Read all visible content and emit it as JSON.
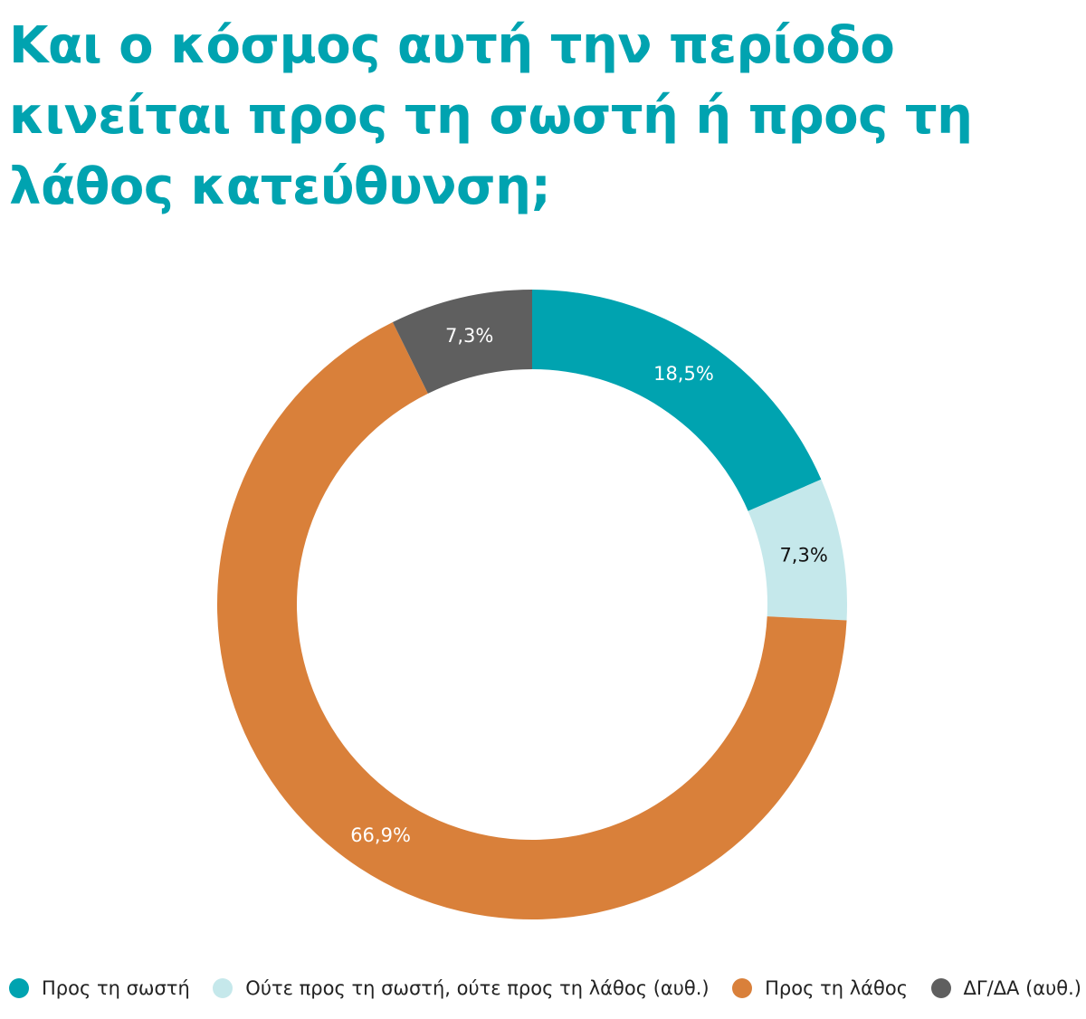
{
  "title": "Και ο κόσμος αυτή την περίοδο κινείται προς τη σωστή ή προς τη λάθος κατεύθυνση;",
  "chart_data": {
    "type": "pie",
    "donut": true,
    "title": "Και ο κόσμος αυτή την περίοδο κινείται προς τη σωστή ή προς τη λάθος κατεύθυνση;",
    "start": "top",
    "direction": "clockwise",
    "legend_placement": "bottom",
    "slices": [
      {
        "name": "Προς τη σωστή",
        "value": 18.5,
        "label": "18,5%",
        "color": "#00a3b0",
        "label_color": "#ffffff"
      },
      {
        "name": "Ούτε προς τη σωστή, ούτε προς τη λάθος (αυθ.)",
        "value": 7.3,
        "label": "7,3%",
        "color": "#c5e8eb",
        "label_color": "#111111"
      },
      {
        "name": "Προς τη λάθος",
        "value": 66.9,
        "label": "66,9%",
        "color": "#d9803a",
        "label_color": "#ffffff"
      },
      {
        "name": "ΔΓ/ΔΑ (αυθ.)",
        "value": 7.3,
        "label": "7,3%",
        "color": "#5f5f5f",
        "label_color": "#ffffff"
      }
    ]
  }
}
